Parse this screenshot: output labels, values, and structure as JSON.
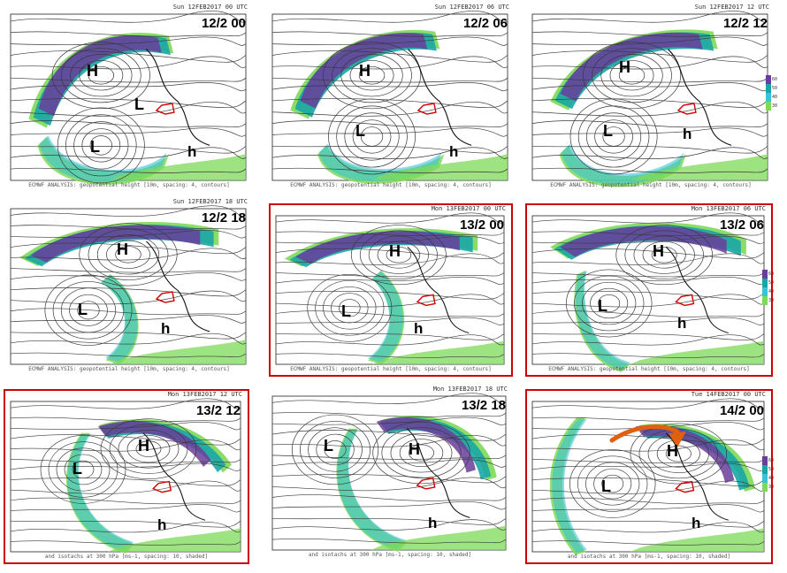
{
  "panels": [
    {
      "id": "p1",
      "header": "Sun 12FEB2017 00 UTC",
      "time_label": "12/2 00",
      "highlighted": false,
      "labels": [
        {
          "t": "H"
        },
        {
          "t": "L"
        },
        {
          "t": "L"
        },
        {
          "t": "h"
        }
      ],
      "footer": "ECMWF ANALYSIS: geopotential height [10m, spacing: 4, contours]"
    },
    {
      "id": "p2",
      "header": "Sun 12FEB2017 06 UTC",
      "time_label": "12/2 06",
      "highlighted": false,
      "labels": [
        {
          "t": "H"
        },
        {
          "t": "L"
        },
        {
          "t": "h"
        }
      ],
      "footer": "ECMWF ANALYSIS: geopotential height [10m, spacing: 4, contours]"
    },
    {
      "id": "p3",
      "header": "Sun 12FEB2017 12 UTC",
      "time_label": "12/2 12",
      "highlighted": false,
      "labels": [
        {
          "t": "H"
        },
        {
          "t": "L"
        },
        {
          "t": "h"
        }
      ],
      "footer": "ECMWF ANALYSIS: geopotential height [10m, spacing: 4, contours]"
    },
    {
      "id": "p4",
      "header": "Sun 12FEB2017 18 UTC",
      "time_label": "12/2 18",
      "highlighted": false,
      "labels": [
        {
          "t": "H"
        },
        {
          "t": "L"
        },
        {
          "t": "h"
        }
      ],
      "footer": "ECMWF ANALYSIS: geopotential height [10m, spacing: 4, contours]"
    },
    {
      "id": "p5",
      "header": "Mon 13FEB2017 00 UTC",
      "time_label": "13/2 00",
      "highlighted": true,
      "labels": [
        {
          "t": "H"
        },
        {
          "t": "L"
        },
        {
          "t": "h"
        }
      ],
      "footer": "ECMWF ANALYSIS: geopotential height [10m, spacing: 4, contours]"
    },
    {
      "id": "p6",
      "header": "Mon 13FEB2017 06 UTC",
      "time_label": "13/2 06",
      "highlighted": true,
      "labels": [
        {
          "t": "H"
        },
        {
          "t": "L"
        },
        {
          "t": "h"
        }
      ],
      "footer": "ECMWF ANALYSIS: geopotential height [10m, spacing: 4, contours]"
    },
    {
      "id": "p7",
      "header": "Mon 13FEB2017 12 UTC",
      "time_label": "13/2 12",
      "highlighted": true,
      "labels": [
        {
          "t": "H"
        },
        {
          "t": "L"
        },
        {
          "t": "h"
        }
      ],
      "footer": "and isotachs at 300 hPa [ms-1, spacing: 10, shaded]"
    },
    {
      "id": "p8",
      "header": "Mon 13FEB2017 18 UTC",
      "time_label": "13/2 18",
      "highlighted": false,
      "labels": [
        {
          "t": "H"
        },
        {
          "t": "L"
        },
        {
          "t": "h"
        }
      ],
      "footer": "and isotachs at 300 hPa [ms-1, spacing: 10, shaded]"
    },
    {
      "id": "p9",
      "header": "Tue 14FEB2017 00 UTC",
      "time_label": "14/2 00",
      "highlighted": true,
      "labels": [
        {
          "t": "H"
        },
        {
          "t": "L"
        },
        {
          "t": "h"
        }
      ],
      "footer": "and isotachs at 300 hPa [ms-1, spacing: 10, shaded]"
    }
  ],
  "colorbar_ticks": [
    "60",
    "50",
    "40",
    "30"
  ],
  "colors": {
    "frame": "#d00000",
    "arrow": "#e06010",
    "contour": "#3a3a3a",
    "jet_purple": "#6a3d9a",
    "jet_teal": "#1aa6a6",
    "jet_green": "#7ed957",
    "jet_cyan": "#39c3d6",
    "region": "#d00000"
  }
}
